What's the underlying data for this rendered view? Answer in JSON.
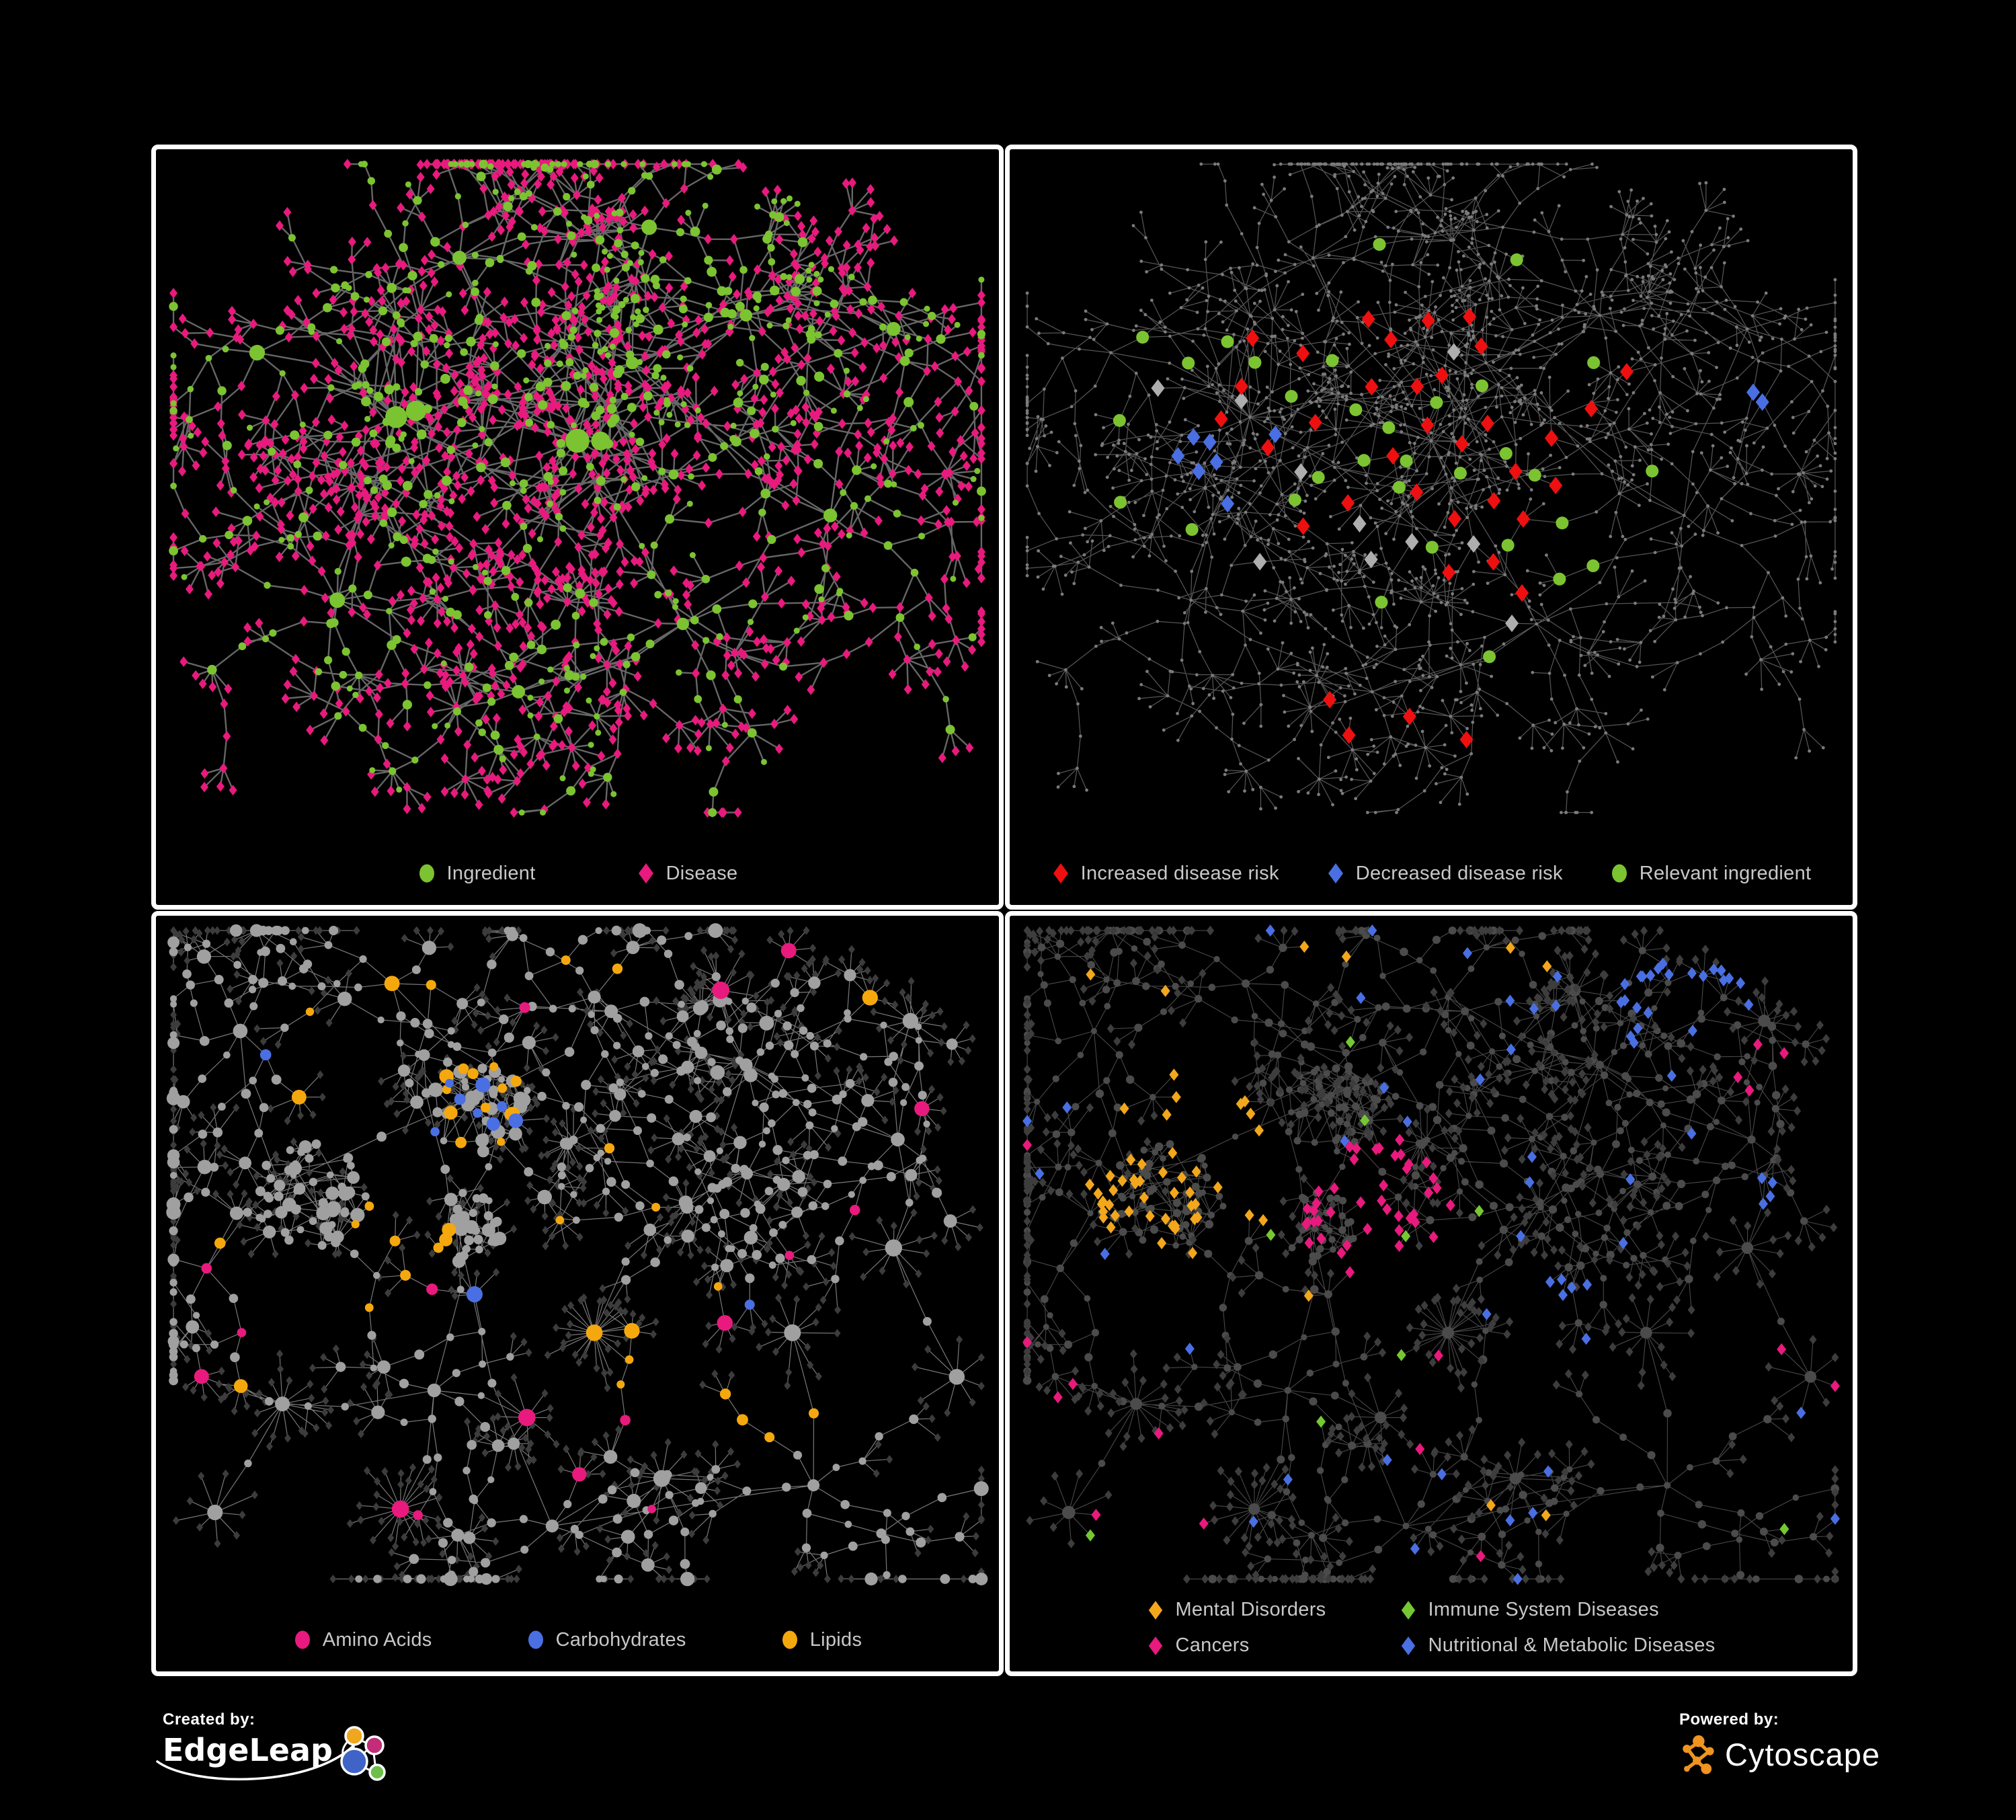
{
  "poster": {
    "background": "#000000"
  },
  "panels": [
    {
      "id": "ingredient-disease",
      "legend": {
        "items": [
          {
            "label": "Ingredient",
            "marker": "circle",
            "color": "#7cc331"
          },
          {
            "label": "Disease",
            "marker": "diamond",
            "color": "#e81a7d"
          }
        ]
      },
      "network": {
        "seed": 1337,
        "kind": "top",
        "paint": "tl"
      }
    },
    {
      "id": "disease-risk",
      "legend": {
        "items": [
          {
            "label": "Increased disease risk",
            "marker": "diamond",
            "color": "#ee1010"
          },
          {
            "label": "Decreased disease risk",
            "marker": "diamond",
            "color": "#4a6fe3"
          },
          {
            "label": "Relevant ingredient",
            "marker": "circle",
            "color": "#7cc331"
          }
        ]
      },
      "network": {
        "seed": 1337,
        "kind": "top",
        "paint": "tr"
      }
    },
    {
      "id": "ingredient-classes",
      "legend": {
        "items": [
          {
            "label": "Amino Acids",
            "marker": "circle",
            "color": "#e81a7d"
          },
          {
            "label": "Carbohydrates",
            "marker": "circle",
            "color": "#4a6fe3"
          },
          {
            "label": "Lipids",
            "marker": "circle",
            "color": "#f5a80d"
          }
        ]
      },
      "network": {
        "seed": 4242,
        "kind": "bottom",
        "paint": "bl"
      }
    },
    {
      "id": "disease-categories",
      "legend": {
        "items": [
          {
            "label": "Mental Disorders",
            "marker": "diamond",
            "color": "#f2a71c"
          },
          {
            "label": "Immune System Diseases",
            "marker": "diamond",
            "color": "#76c832"
          },
          {
            "label": "Cancers",
            "marker": "diamond",
            "color": "#e81a7d"
          },
          {
            "label": "Nutritional & Metabolic Diseases",
            "marker": "diamond",
            "color": "#4a6fe3"
          }
        ]
      },
      "network": {
        "seed": 4242,
        "kind": "bottom",
        "paint": "br"
      }
    }
  ],
  "styles": {
    "tl": {
      "edge": "#6b6b6b",
      "ingredient": "#7cc331",
      "disease": "#e81a7d"
    },
    "tr": {
      "edge": "#5e5e5e",
      "dot": "#7b7b7b",
      "increased": "#ee1010",
      "decreased": "#4a6fe3",
      "neutral": "#aeaeae",
      "ingredient": "#7cc331"
    },
    "bl": {
      "edge": "#9b9b9b",
      "node": "#a0a0a0",
      "disease": "#3c3c3c",
      "amino": "#e81a7d",
      "carbs": "#4a6fe3",
      "lipids": "#f5a80d"
    },
    "br": {
      "edge": "#7a7a7a",
      "node": "#4b4b4b",
      "disease": "#3d3d3d",
      "mental": "#f2a71c",
      "immune": "#76c832",
      "cancers": "#e81a7d",
      "nutritional": "#4a6fe3"
    }
  },
  "footer": {
    "created_by": {
      "label": "Created by:",
      "brand": "EdgeLeap"
    },
    "powered_by": {
      "label": "Powered by:",
      "brand": "Cytoscape"
    },
    "edgeleap_logo": {
      "orange": "#f0a71f",
      "magenta": "#c12d76",
      "blue": "#3f63c6",
      "green": "#6cc04a",
      "line": "#ffffff"
    },
    "cytoscape_logo": {
      "orange": "#ef9420"
    }
  }
}
